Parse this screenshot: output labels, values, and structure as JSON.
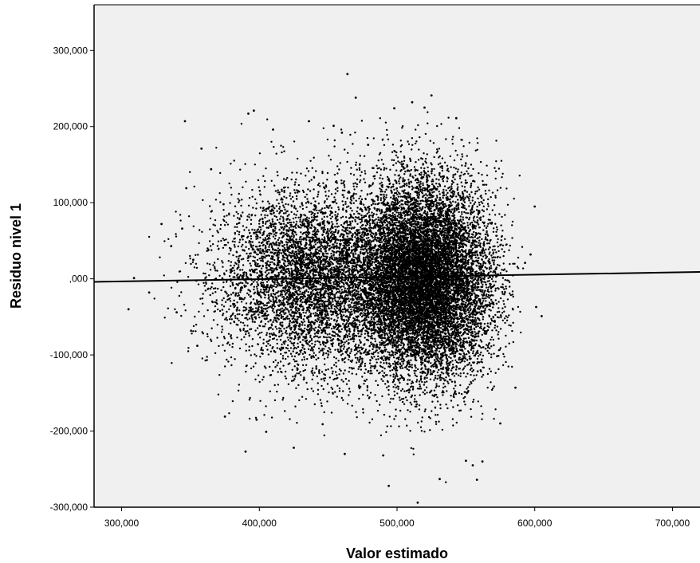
{
  "chart_data": {
    "type": "scatter",
    "title": "",
    "xlabel": "Valor estimado",
    "ylabel": "Residuo nivel 1",
    "xlim": [
      280000,
      720000
    ],
    "ylim": [
      -300000,
      360000
    ],
    "x_ticks": [
      300000,
      400000,
      500000,
      600000,
      700000
    ],
    "x_tick_labels": [
      "300,000",
      "400,000",
      "500,000",
      "600,000",
      "700,000"
    ],
    "y_ticks": [
      -300000,
      -200000,
      -100000,
      0,
      100000,
      200000,
      300000
    ],
    "y_tick_labels": [
      "-300,000",
      "-200,000",
      "-100,000",
      ",000",
      "100,000",
      "200,000",
      "300,000"
    ],
    "grid": false,
    "colors": {
      "plot_background": "#f0f0f0",
      "points": "#000000",
      "fit_line": "#000000"
    },
    "fit_line": {
      "x": [
        280000,
        720000
      ],
      "y": [
        -4000,
        9000
      ]
    },
    "clusters": [
      {
        "center_x": 440000,
        "center_y": 0,
        "sd_x": 35000,
        "sd_y": 60000,
        "count": 5500
      },
      {
        "center_x": 520000,
        "center_y": 0,
        "sd_x": 25000,
        "sd_y": 65000,
        "count": 11000
      }
    ],
    "x_range_observed": [
      305000,
      605000
    ],
    "series": [
      {
        "values": [
          [
            305000,
            -40000
          ],
          [
            309000,
            1000
          ],
          [
            320000,
            -18000
          ],
          [
            329000,
            72000
          ],
          [
            336000,
            43000
          ],
          [
            340000,
            -44000
          ],
          [
            344000,
            66000
          ],
          [
            346000,
            207000
          ],
          [
            347000,
            119000
          ],
          [
            352000,
            25000
          ],
          [
            358000,
            171000
          ],
          [
            365000,
            144000
          ],
          [
            375000,
            -181000
          ],
          [
            390000,
            -227000
          ],
          [
            392000,
            217000
          ],
          [
            396000,
            221000
          ],
          [
            398000,
            -185000
          ],
          [
            405000,
            -201000
          ],
          [
            410000,
            196000
          ],
          [
            425000,
            -222000
          ],
          [
            436000,
            207000
          ],
          [
            446000,
            -191000
          ],
          [
            454000,
            201000
          ],
          [
            460000,
            192000
          ],
          [
            462000,
            -230000
          ],
          [
            464000,
            269000
          ],
          [
            470000,
            238000
          ],
          [
            479000,
            176000
          ],
          [
            490000,
            -232000
          ],
          [
            494000,
            -272000
          ],
          [
            498000,
            224000
          ],
          [
            511000,
            232000
          ],
          [
            515000,
            -294000
          ],
          [
            520000,
            225000
          ],
          [
            525000,
            241000
          ],
          [
            531000,
            -263000
          ],
          [
            543000,
            211000
          ],
          [
            550000,
            -239000
          ],
          [
            555000,
            -245000
          ],
          [
            558000,
            -264000
          ],
          [
            562000,
            -240000
          ],
          [
            575000,
            -190000
          ],
          [
            586000,
            -143000
          ],
          [
            593000,
            21000
          ],
          [
            600000,
            95000
          ],
          [
            601000,
            -37000
          ],
          [
            605000,
            -49000
          ],
          [
            597000,
            32000
          ],
          [
            374000,
            98000
          ],
          [
            355000,
            -88000
          ]
        ]
      }
    ]
  }
}
